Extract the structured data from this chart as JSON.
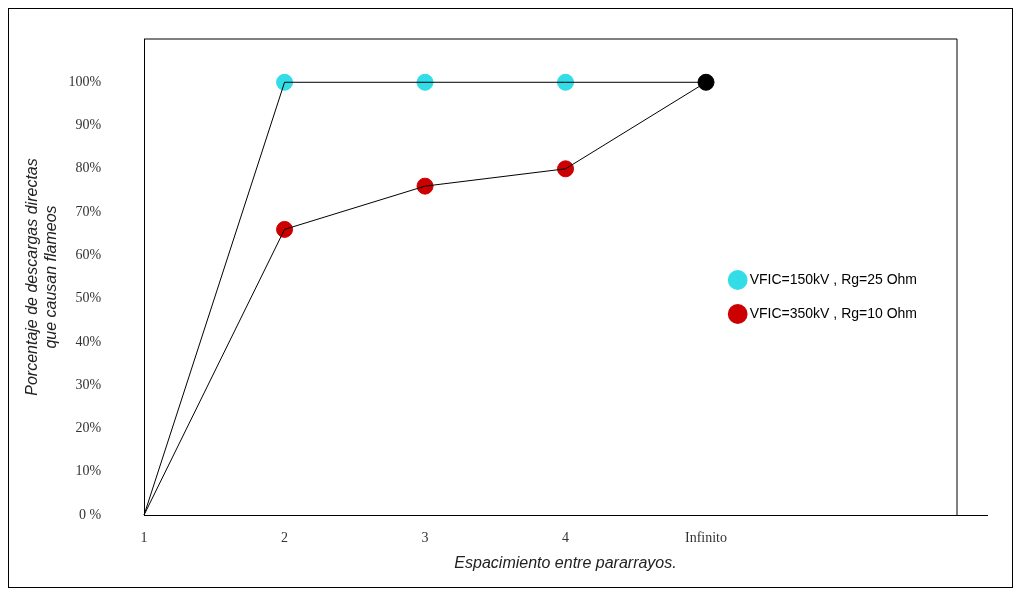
{
  "chart_data": {
    "type": "line",
    "xlabel": "Espacimiento entre pararrayos.",
    "ylabel": "Porcentaje de descargas directas\nque causan flameos",
    "categories": [
      "1",
      "2",
      "3",
      "4",
      "Infinito",
      null,
      null
    ],
    "series": [
      {
        "type": "line",
        "color": "#000000",
        "marker": "none",
        "values": [
          0,
          100,
          100,
          100,
          100,
          null,
          null
        ]
      },
      {
        "type": "line",
        "color": "#000000",
        "marker": "none",
        "values": [
          0,
          66,
          76,
          80,
          100,
          null,
          null
        ]
      },
      {
        "type": "scatter",
        "name": "VFIC=150kV , Rg=25 Ohm",
        "color": "#33dde8",
        "values": [
          null,
          100,
          100,
          100,
          null,
          null,
          null
        ]
      },
      {
        "type": "scatter",
        "name": "VFIC=350kV , Rg=10 Ohm",
        "color": "#cc0000",
        "values": [
          null,
          66,
          76,
          80,
          null,
          null,
          null
        ]
      },
      {
        "type": "scatter",
        "color": "#000000",
        "values": [
          null,
          null,
          null,
          null,
          100,
          null,
          null
        ]
      }
    ],
    "ylim": [
      0,
      110
    ],
    "yticks": [
      {
        "value": 0,
        "label": "0 %"
      },
      {
        "value": 10,
        "label": "10%"
      },
      {
        "value": 20,
        "label": "20%"
      },
      {
        "value": 30,
        "label": "30%"
      },
      {
        "value": 40,
        "label": "40%"
      },
      {
        "value": 50,
        "label": "50%"
      },
      {
        "value": 60,
        "label": "60%"
      },
      {
        "value": 70,
        "label": "70%"
      },
      {
        "value": 80,
        "label": "80%"
      },
      {
        "value": 90,
        "label": "90%"
      },
      {
        "value": 100,
        "label": "100%"
      }
    ],
    "legend": "right",
    "grid": false,
    "marker": "circle",
    "line_style": "solid"
  }
}
